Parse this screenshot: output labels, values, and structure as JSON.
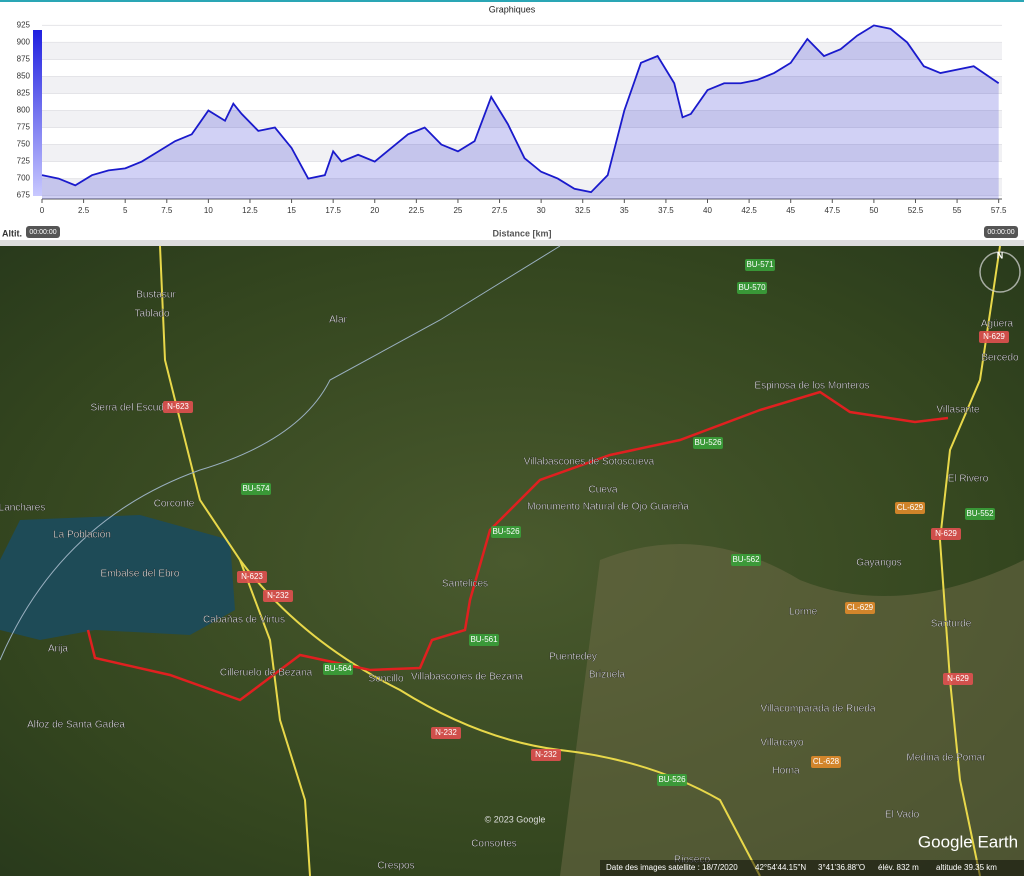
{
  "window": {
    "title": "Graphiques",
    "time_start": "00:00:00",
    "time_end": "00:00:00"
  },
  "chart_data": {
    "type": "area",
    "x_label": "Distance [km]",
    "y_label": "Altit.",
    "color": "#1a1acc",
    "x": [
      0,
      1,
      2,
      3,
      4,
      5,
      6,
      7,
      8,
      9,
      10,
      11,
      11.5,
      12,
      13,
      14,
      15,
      16,
      17,
      17.5,
      18,
      19,
      20,
      21,
      22,
      23,
      24,
      25,
      26,
      27,
      28,
      29,
      30,
      31,
      32,
      33,
      34,
      35,
      36,
      37,
      38,
      38.5,
      39,
      40,
      41,
      42,
      43,
      44,
      45,
      46,
      47,
      48,
      49,
      50,
      51,
      52,
      53,
      54,
      55,
      56,
      57.5
    ],
    "series": [
      {
        "name": "Altit.",
        "color": "#1a1acc",
        "values": [
          705,
          700,
          690,
          705,
          712,
          715,
          725,
          740,
          755,
          765,
          800,
          785,
          810,
          795,
          770,
          775,
          745,
          700,
          705,
          740,
          725,
          735,
          725,
          745,
          765,
          775,
          750,
          740,
          755,
          820,
          780,
          730,
          710,
          700,
          685,
          680,
          705,
          800,
          870,
          880,
          840,
          790,
          795,
          830,
          840,
          840,
          845,
          855,
          870,
          905,
          880,
          890,
          910,
          925,
          920,
          900,
          865,
          855,
          860,
          865,
          840
        ]
      }
    ],
    "xlim": [
      0,
      57.7
    ],
    "ylim": [
      670,
      930
    ],
    "xticks": [
      0,
      2.5,
      5,
      7.5,
      10,
      12.5,
      15,
      17.5,
      20,
      22.5,
      25,
      27.5,
      30,
      32.5,
      35,
      37.5,
      40,
      42.5,
      45,
      47.5,
      50,
      52.5,
      55,
      57.5
    ],
    "yticks": [
      675,
      700,
      725,
      750,
      775,
      800,
      825,
      850,
      875,
      900,
      925
    ],
    "grid": true
  },
  "map": {
    "places": [
      "Bustasur",
      "Tablado",
      "Alar",
      "Sierra del Escudo",
      "Lanchares",
      "Corconte",
      "La Población",
      "Embalse del Ebro",
      "Cabañas de Virtus",
      "Arija",
      "Cilleruelo de Bezana",
      "Soncillo",
      "Villabascones de Bezana",
      "Santelices",
      "Villabascones de Sotoscueva",
      "Cueva",
      "Monumento Natural de Ojo Guareña",
      "Espinosa de los Monteros",
      "Villasante",
      "El Rivero",
      "Gayangos",
      "Lorme",
      "Santurde",
      "Puentedey",
      "Brizuela",
      "Villacomparada de Rueda",
      "Villarcayo",
      "Horna",
      "Medina de Pomar",
      "El Vado",
      "Consortes",
      "Crespos",
      "Rioseco",
      "Agüera",
      "Bercedo",
      "Alfoz de Santa Gadea"
    ],
    "roads": [
      "N-623",
      "BU-574",
      "N-623",
      "N-232",
      "BU-564",
      "N-232",
      "N-232",
      "BU-526",
      "BU-526",
      "BU-561",
      "BU-562",
      "CL-629",
      "CL-629",
      "N-629",
      "N-629",
      "BU-552",
      "CL-628",
      "BU-571",
      "BU-570",
      "BU-526",
      "N-629"
    ],
    "footer": {
      "copyright": "© 2023 Google",
      "imagery": "Date des images satellite : 18/7/2020",
      "lat": "42°54'44.15\"N",
      "lon": "3°41'36.88\"O",
      "elev": "élév.  832 m",
      "alt": "altitude  39.35 km",
      "brand": "Google Earth",
      "north": "N"
    }
  }
}
